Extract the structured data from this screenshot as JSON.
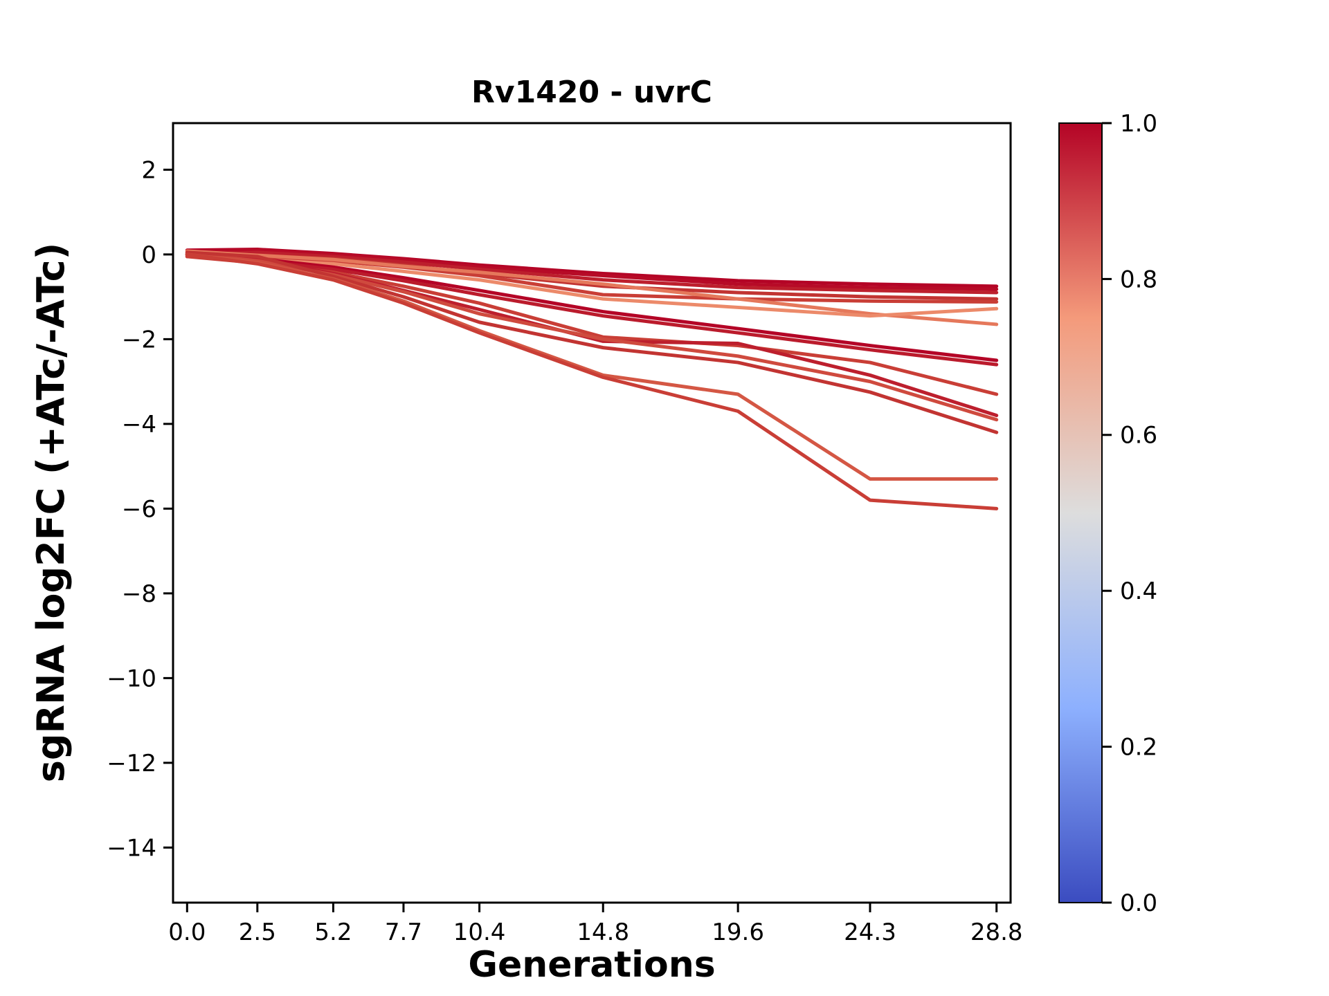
{
  "figure": {
    "background": "#ffffff"
  },
  "chart_data": {
    "type": "line",
    "title": "Rv1420 - uvrC",
    "xlabel": "Generations",
    "ylabel": "sgRNA log2FC (+ATc/-ATc)",
    "x": [
      0.0,
      2.5,
      5.2,
      7.7,
      10.4,
      14.8,
      19.6,
      24.3,
      28.8
    ],
    "x_ticks": [
      0.0,
      2.5,
      5.2,
      7.7,
      10.4,
      14.8,
      19.6,
      24.3,
      28.8
    ],
    "x_tick_labels": [
      "0.0",
      "2.5",
      "5.2",
      "7.7",
      "10.4",
      "14.8",
      "19.6",
      "24.3",
      "28.8"
    ],
    "y_ticks": [
      2,
      0,
      -2,
      -4,
      -6,
      -8,
      -10,
      -12,
      -14
    ],
    "y_tick_labels": [
      "2",
      "0",
      "−2",
      "−4",
      "−6",
      "−8",
      "−10",
      "−12",
      "−14"
    ],
    "xlim": [
      -0.5,
      29.3
    ],
    "ylim": [
      -15.3,
      3.1
    ],
    "grid": false,
    "legend": "none",
    "line_width": 5,
    "series": [
      {
        "color": "#b40426",
        "values": [
          0.1,
          0.12,
          0.02,
          -0.1,
          -0.25,
          -0.45,
          -0.62,
          -0.7,
          -0.75
        ]
      },
      {
        "color": "#b70b27",
        "values": [
          0.05,
          0.1,
          0.0,
          -0.12,
          -0.3,
          -0.5,
          -0.7,
          -0.78,
          -0.82
        ]
      },
      {
        "color": "#bd1f2d",
        "values": [
          0.0,
          0.05,
          -0.05,
          -0.18,
          -0.35,
          -0.6,
          -0.78,
          -0.85,
          -0.9
        ]
      },
      {
        "color": "#c23432",
        "values": [
          -0.05,
          -0.02,
          -0.1,
          -0.25,
          -0.45,
          -0.75,
          -0.9,
          -1.0,
          -1.05
        ]
      },
      {
        "color": "#c93e36",
        "values": [
          0.02,
          -0.08,
          -0.15,
          -0.3,
          -0.5,
          -0.95,
          -1.05,
          -1.1,
          -1.12
        ]
      },
      {
        "color": "#e5785b",
        "values": [
          0.08,
          -0.02,
          -0.12,
          -0.28,
          -0.42,
          -0.7,
          -1.05,
          -1.4,
          -1.65
        ]
      },
      {
        "color": "#ec8a6a",
        "values": [
          0.0,
          -0.12,
          -0.22,
          -0.4,
          -0.6,
          -1.05,
          -1.25,
          -1.45,
          -1.28
        ]
      },
      {
        "color": "#b40426",
        "values": [
          0.0,
          -0.1,
          -0.3,
          -0.55,
          -0.85,
          -1.35,
          -1.75,
          -2.15,
          -2.5
        ]
      },
      {
        "color": "#bb1b2c",
        "values": [
          -0.02,
          -0.15,
          -0.35,
          -0.62,
          -0.95,
          -1.45,
          -1.85,
          -2.25,
          -2.6
        ]
      },
      {
        "color": "#c93e36",
        "values": [
          -0.05,
          -0.2,
          -0.42,
          -0.75,
          -1.15,
          -1.95,
          -2.15,
          -2.55,
          -3.3
        ]
      },
      {
        "color": "#bd1f2d",
        "values": [
          0.0,
          -0.12,
          -0.45,
          -0.85,
          -1.3,
          -2.05,
          -2.1,
          -2.85,
          -3.8
        ]
      },
      {
        "color": "#cf4a3e",
        "values": [
          0.02,
          -0.15,
          -0.48,
          -0.88,
          -1.4,
          -2.0,
          -2.4,
          -3.0,
          -3.9
        ]
      },
      {
        "color": "#c23432",
        "values": [
          0.05,
          -0.05,
          -0.52,
          -1.0,
          -1.6,
          -2.2,
          -2.55,
          -3.25,
          -4.2
        ]
      },
      {
        "color": "#d45744",
        "values": [
          0.0,
          -0.2,
          -0.58,
          -1.1,
          -1.8,
          -2.85,
          -3.3,
          -5.3,
          -5.3
        ]
      },
      {
        "color": "#c93e36",
        "values": [
          0.0,
          -0.22,
          -0.6,
          -1.15,
          -1.85,
          -2.9,
          -3.7,
          -5.8,
          -6.0
        ]
      }
    ],
    "colorbar": {
      "range": [
        0.0,
        1.0
      ],
      "ticks": [
        {
          "value": 0.0,
          "label": "0.0"
        },
        {
          "value": 0.2,
          "label": "0.2"
        },
        {
          "value": 0.4,
          "label": "0.4"
        },
        {
          "value": 0.6,
          "label": "0.6"
        },
        {
          "value": 0.8,
          "label": "0.8"
        },
        {
          "value": 1.0,
          "label": "1.0"
        }
      ],
      "gradient": [
        {
          "offset": 0.0,
          "color": "#3b4cc0"
        },
        {
          "offset": 0.25,
          "color": "#8db0fe"
        },
        {
          "offset": 0.5,
          "color": "#dddddd"
        },
        {
          "offset": 0.75,
          "color": "#f49a7b"
        },
        {
          "offset": 1.0,
          "color": "#b40426"
        }
      ]
    }
  }
}
